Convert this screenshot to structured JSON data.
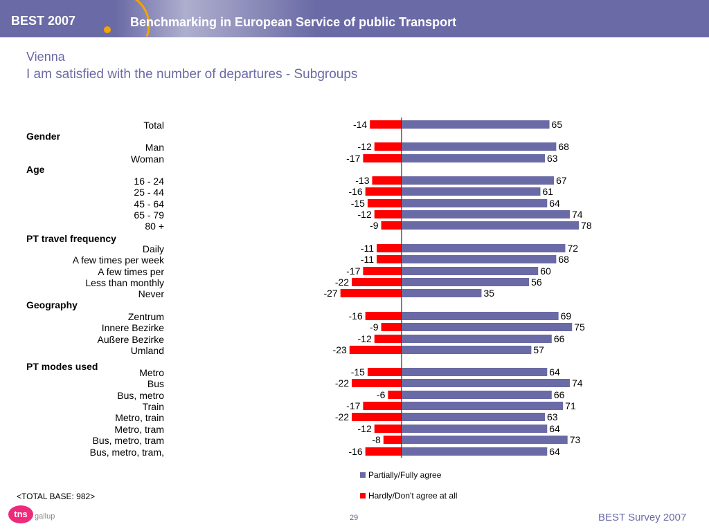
{
  "header": {
    "brand": "BEST 2007",
    "tagline": "Benchmarking in European Service of public Transport"
  },
  "title": {
    "line1": "Vienna",
    "line2": "I am satisfied with the number of departures - Subgroups"
  },
  "chart_data": {
    "type": "bar",
    "orientation": "horizontal",
    "stacked": "diverging",
    "rows": [
      {
        "label": "Total",
        "agree": 65,
        "disagree": -14
      },
      {
        "group": "Gender"
      },
      {
        "label": "Man",
        "agree": 68,
        "disagree": -12
      },
      {
        "label": "Woman",
        "agree": 63,
        "disagree": -17
      },
      {
        "group": "Age"
      },
      {
        "label": "16 - 24",
        "agree": 67,
        "disagree": -13
      },
      {
        "label": "25 - 44",
        "agree": 61,
        "disagree": -16
      },
      {
        "label": "45 - 64",
        "agree": 64,
        "disagree": -15
      },
      {
        "label": "65 - 79",
        "agree": 74,
        "disagree": -12
      },
      {
        "label": "80 +",
        "agree": 78,
        "disagree": -9
      },
      {
        "group": "PT travel frequency"
      },
      {
        "label": "Daily",
        "agree": 72,
        "disagree": -11
      },
      {
        "label": "A few times per week",
        "agree": 68,
        "disagree": -11
      },
      {
        "label": "A few times per",
        "agree": 60,
        "disagree": -17
      },
      {
        "label": "Less than monthly",
        "agree": 56,
        "disagree": -22
      },
      {
        "label": "Never",
        "agree": 35,
        "disagree": -27
      },
      {
        "group": "Geography"
      },
      {
        "label": "Zentrum",
        "agree": 69,
        "disagree": -16
      },
      {
        "label": "Innere Bezirke",
        "agree": 75,
        "disagree": -9
      },
      {
        "label": "Außere Bezirke",
        "agree": 66,
        "disagree": -12
      },
      {
        "label": "Umland",
        "agree": 57,
        "disagree": -23
      },
      {
        "group": "PT modes used"
      },
      {
        "label": "Metro",
        "agree": 64,
        "disagree": -15
      },
      {
        "label": "Bus",
        "agree": 74,
        "disagree": -22
      },
      {
        "label": "Bus, metro",
        "agree": 66,
        "disagree": -6
      },
      {
        "label": "Train",
        "agree": 71,
        "disagree": -17
      },
      {
        "label": "Metro, train",
        "agree": 63,
        "disagree": -22
      },
      {
        "label": "Metro, tram",
        "agree": 64,
        "disagree": -12
      },
      {
        "label": "Bus, metro, tram",
        "agree": 73,
        "disagree": -8
      },
      {
        "label": "Bus, metro, tram,",
        "agree": 64,
        "disagree": -16
      }
    ],
    "series": [
      {
        "key": "agree",
        "name": "Partially/Fully agree",
        "color": "#6a6aa6"
      },
      {
        "key": "disagree",
        "name": "Hardly/Don't agree at all",
        "color": "#ff0000"
      }
    ],
    "grid": false,
    "legend_position": "bottom"
  },
  "base_note": "<TOTAL BASE: 982>",
  "footer": {
    "logo_text": "tns",
    "company": "gallup",
    "page": "29",
    "survey": "BEST Survey 2007"
  }
}
